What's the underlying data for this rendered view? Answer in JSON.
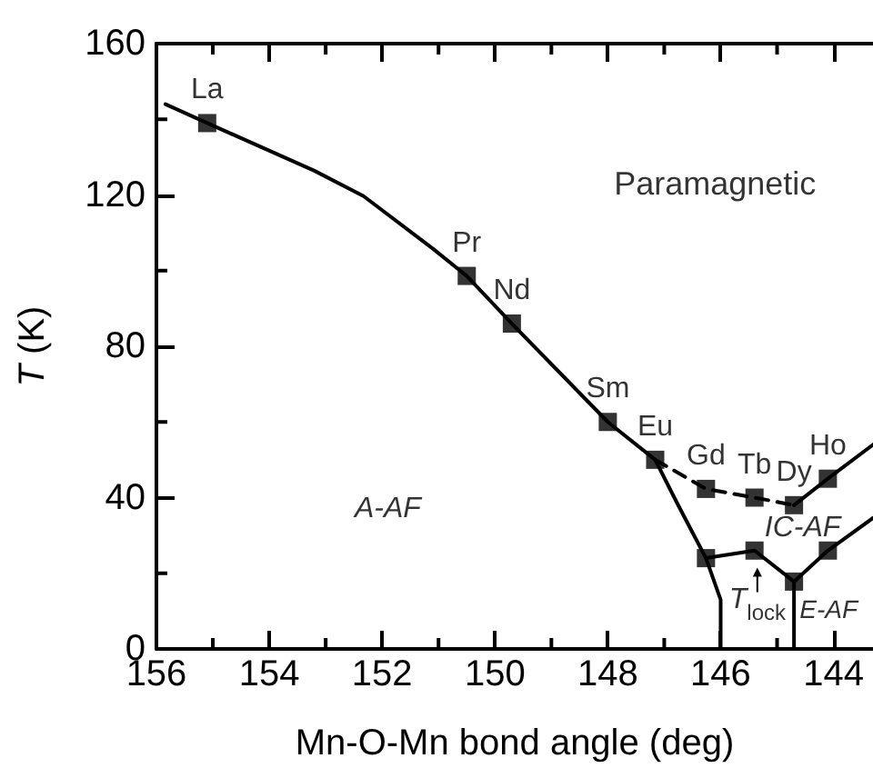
{
  "chart_data": {
    "type": "line",
    "xlabel": "Mn-O-Mn bond angle (deg)",
    "ylabel": "T (K)",
    "xlim": [
      156,
      143.3
    ],
    "ylim": [
      0,
      160
    ],
    "xticks": [
      156,
      {
        "value": 155,
        "label": null
      },
      154,
      {
        "value": 153,
        "label": null
      },
      152,
      {
        "value": 151,
        "label": null
      },
      150,
      {
        "value": 149,
        "label": null
      },
      148,
      {
        "value": 147,
        "label": null
      },
      146,
      {
        "value": 145,
        "label": null
      },
      144
    ],
    "yticks": [
      0,
      {
        "value": 20,
        "label": null
      },
      40,
      {
        "value": 60,
        "label": null
      },
      80,
      {
        "value": 100,
        "label": null
      },
      120,
      {
        "value": 140,
        "label": null
      },
      160
    ],
    "grid": false,
    "series": [
      {
        "color": "#000000",
        "marker": "none",
        "line_style": "solid",
        "x": [
          155.84,
          155.1,
          153.2,
          152.33,
          151.1,
          150.5,
          149.7,
          148.0,
          147.16
        ],
        "values": [
          144,
          139,
          126.4,
          119.7,
          105.8,
          98.6,
          86,
          60,
          50
        ]
      },
      {
        "color": "#000000",
        "marker": "none",
        "line_style": "dashed",
        "x": [
          147.16,
          146.26,
          145.4,
          144.7
        ],
        "values": [
          50,
          42.3,
          40,
          38
        ]
      },
      {
        "color": "#000000",
        "marker": "none",
        "line_style": "solid",
        "x": [
          144.7,
          144.1,
          143.3
        ],
        "values": [
          38,
          45,
          54
        ]
      },
      {
        "color": "#000000",
        "marker": "none",
        "line_style": "solid",
        "x": [
          147.16,
          146.77,
          146.38,
          146.26,
          146.0,
          146.0
        ],
        "values": [
          50,
          38.5,
          27.4,
          24,
          13,
          0
        ]
      },
      {
        "color": "#000000",
        "marker": "none",
        "line_style": "solid",
        "x": [
          146.26,
          145.4,
          144.7,
          144.1,
          143.3
        ],
        "values": [
          24,
          26,
          17.8,
          26,
          34.6
        ]
      },
      {
        "color": "#000000",
        "marker": "none",
        "line_style": "solid",
        "x": [
          144.7,
          144.7
        ],
        "values": [
          17.8,
          0
        ]
      },
      {
        "type": "scatter",
        "color": "#000000",
        "marker": "square",
        "x": [
          155.1,
          150.5,
          149.7,
          148.0,
          147.16,
          146.26,
          145.4,
          144.7,
          144.1,
          146.26,
          145.4,
          144.7,
          144.1
        ],
        "values": [
          139,
          98.6,
          86,
          60,
          50,
          42.3,
          40,
          38,
          45,
          24,
          26,
          17.8,
          26
        ]
      }
    ],
    "annotations": [
      {
        "text": "La",
        "x": 155.1,
        "y": 139
      },
      {
        "text": "Pr",
        "x": 150.5,
        "y": 98.6
      },
      {
        "text": "Nd",
        "x": 149.7,
        "y": 86
      },
      {
        "text": "Sm",
        "x": 148.0,
        "y": 60
      },
      {
        "text": "Eu",
        "x": 147.16,
        "y": 50
      },
      {
        "text": "Gd",
        "x": 146.26,
        "y": 42.3
      },
      {
        "text": "Tb",
        "x": 145.4,
        "y": 40
      },
      {
        "text": "Dy",
        "x": 144.7,
        "y": 38
      },
      {
        "text": "Ho",
        "x": 144.1,
        "y": 45
      },
      "Paramagnetic",
      "A-AF",
      "IC-AF",
      "E-AF",
      "T$_{lock}$"
    ]
  }
}
